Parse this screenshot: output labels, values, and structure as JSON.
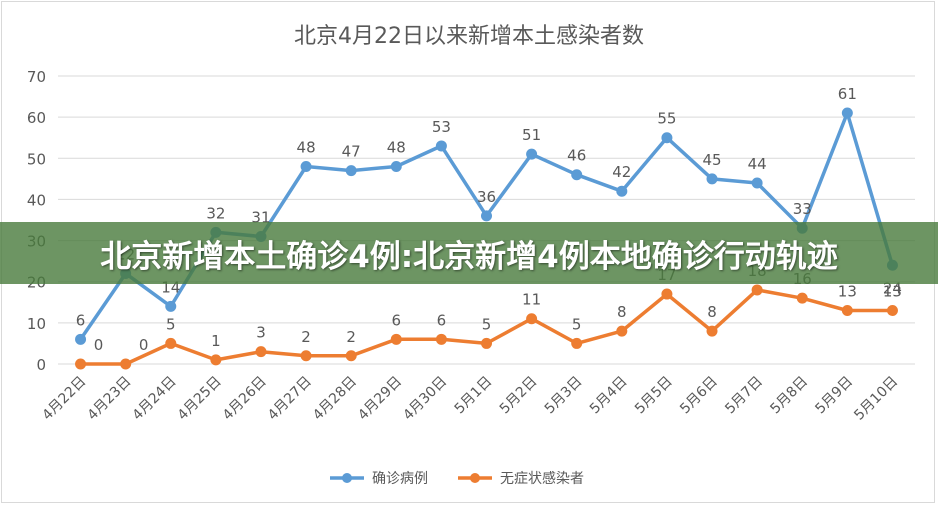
{
  "banner": {
    "headline": "北京新增本土确诊4例:北京新增4例本地确诊行动轨迹"
  },
  "colors": {
    "confirmed": "#5b9bd5",
    "asymptomatic": "#ed7d31",
    "grid": "#d9d9d9",
    "text": "#595959"
  },
  "chart_data": {
    "type": "line",
    "title": "北京4月22日以来新增本土感染者数",
    "categories": [
      "4月22日",
      "4月23日",
      "4月24日",
      "4月25日",
      "4月26日",
      "4月27日",
      "4月28日",
      "4月29日",
      "4月30日",
      "5月1日",
      "5月2日",
      "5月3日",
      "5月4日",
      "5月5日",
      "5月6日",
      "5月7日",
      "5月8日",
      "5月9日",
      "5月10日"
    ],
    "series": [
      {
        "name": "确诊病例",
        "values": [
          6,
          22,
          14,
          32,
          31,
          48,
          47,
          48,
          53,
          36,
          51,
          46,
          42,
          55,
          45,
          44,
          33,
          61,
          24
        ]
      },
      {
        "name": "无症状感染者",
        "values": [
          0,
          0,
          5,
          1,
          3,
          2,
          2,
          6,
          6,
          5,
          11,
          5,
          8,
          17,
          8,
          18,
          16,
          13,
          13
        ]
      }
    ],
    "ylim": [
      0,
      70
    ],
    "yticks": [
      "0",
      "10",
      "20",
      "30",
      "40",
      "50",
      "60",
      "70"
    ],
    "grid": true,
    "legend": "bottom"
  }
}
